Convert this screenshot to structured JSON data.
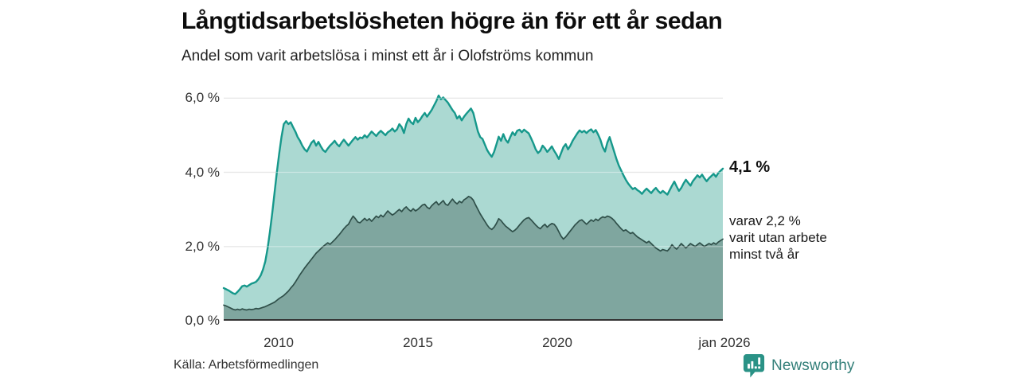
{
  "header": {
    "title": "Långtidsarbetslösheten högre än för ett år sedan",
    "subtitle": "Andel som varit arbetslösa i minst ett år i Olofströms kommun"
  },
  "chart_data": {
    "type": "area",
    "title": "Långtidsarbetslösheten högre än för ett år sedan",
    "subtitle": "Andel som varit arbetslösa i minst ett år i Olofströms kommun",
    "unit": "%",
    "x_start": "2008-01",
    "x_end": "2026-01",
    "x_interval": "monthly",
    "ylim": [
      0,
      6.5
    ],
    "grid": true,
    "gridline_values": [
      2,
      4,
      6
    ],
    "ytick_labels": [
      "6,0 %",
      "4,0 %",
      "2,0 %",
      "0,0 %"
    ],
    "xtick_labels": [
      "2010",
      "2015",
      "2020",
      "jan 2026"
    ],
    "colors": {
      "gridline": "#d8d8d8",
      "gridline_over_fill": "rgba(255,255,255,0.4)",
      "baseline": "#333333"
    },
    "series": [
      {
        "name": "Arbetslösa minst ett år",
        "end_value": "4,1 %",
        "color": "#16988b",
        "fill": "#abd9d2",
        "line_width": 2.4,
        "values": [
          0.88,
          0.85,
          0.82,
          0.78,
          0.74,
          0.72,
          0.78,
          0.85,
          0.93,
          0.95,
          0.92,
          0.96,
          1.0,
          1.02,
          1.05,
          1.12,
          1.22,
          1.38,
          1.6,
          1.95,
          2.4,
          2.9,
          3.45,
          4.0,
          4.5,
          4.95,
          5.3,
          5.38,
          5.3,
          5.35,
          5.22,
          5.1,
          4.95,
          4.85,
          4.72,
          4.62,
          4.56,
          4.68,
          4.8,
          4.86,
          4.72,
          4.82,
          4.7,
          4.6,
          4.55,
          4.64,
          4.72,
          4.78,
          4.85,
          4.76,
          4.7,
          4.8,
          4.88,
          4.8,
          4.72,
          4.8,
          4.88,
          4.95,
          4.88,
          4.94,
          4.92,
          5.0,
          4.94,
          5.02,
          5.1,
          5.04,
          4.98,
          5.06,
          5.12,
          5.06,
          5.0,
          5.08,
          5.12,
          5.18,
          5.1,
          5.16,
          5.3,
          5.22,
          5.06,
          5.3,
          5.45,
          5.35,
          5.3,
          5.47,
          5.35,
          5.42,
          5.52,
          5.6,
          5.5,
          5.59,
          5.68,
          5.8,
          5.92,
          6.07,
          5.97,
          6.02,
          5.95,
          5.88,
          5.78,
          5.68,
          5.6,
          5.45,
          5.52,
          5.4,
          5.5,
          5.58,
          5.65,
          5.72,
          5.6,
          5.35,
          5.1,
          4.95,
          4.9,
          4.75,
          4.6,
          4.5,
          4.42,
          4.55,
          4.75,
          4.96,
          4.85,
          5.03,
          4.88,
          4.8,
          4.95,
          5.08,
          5.0,
          5.12,
          5.15,
          5.08,
          5.15,
          5.1,
          5.05,
          4.92,
          4.78,
          4.62,
          4.52,
          4.58,
          4.72,
          4.65,
          4.55,
          4.62,
          4.7,
          4.58,
          4.48,
          4.36,
          4.52,
          4.68,
          4.76,
          4.62,
          4.72,
          4.85,
          4.95,
          5.05,
          5.13,
          5.08,
          5.12,
          5.06,
          5.12,
          5.16,
          5.08,
          5.14,
          5.02,
          4.88,
          4.68,
          4.56,
          4.8,
          4.95,
          4.75,
          4.55,
          4.35,
          4.18,
          4.05,
          3.92,
          3.8,
          3.7,
          3.62,
          3.55,
          3.58,
          3.52,
          3.48,
          3.42,
          3.5,
          3.56,
          3.5,
          3.44,
          3.52,
          3.58,
          3.5,
          3.44,
          3.5,
          3.45,
          3.4,
          3.52,
          3.64,
          3.75,
          3.62,
          3.5,
          3.58,
          3.7,
          3.8,
          3.72,
          3.64,
          3.76,
          3.84,
          3.92,
          3.86,
          3.94,
          3.84,
          3.76,
          3.84,
          3.9,
          3.96,
          3.88,
          3.98,
          4.04,
          4.1
        ]
      },
      {
        "name": "Varit utan arbete minst två år",
        "end_value": "2,2 %",
        "color": "#2f4f49",
        "fill": "#7fa69f",
        "line_width": 1.7,
        "values": [
          0.42,
          0.4,
          0.37,
          0.34,
          0.31,
          0.29,
          0.31,
          0.29,
          0.32,
          0.3,
          0.29,
          0.31,
          0.3,
          0.31,
          0.33,
          0.32,
          0.34,
          0.36,
          0.38,
          0.41,
          0.44,
          0.47,
          0.5,
          0.55,
          0.6,
          0.64,
          0.68,
          0.74,
          0.8,
          0.88,
          0.95,
          1.04,
          1.14,
          1.24,
          1.33,
          1.42,
          1.5,
          1.58,
          1.66,
          1.74,
          1.82,
          1.88,
          1.94,
          2.0,
          2.05,
          2.1,
          2.06,
          2.12,
          2.18,
          2.25,
          2.32,
          2.4,
          2.48,
          2.55,
          2.6,
          2.72,
          2.82,
          2.75,
          2.66,
          2.64,
          2.7,
          2.76,
          2.7,
          2.75,
          2.68,
          2.75,
          2.82,
          2.78,
          2.85,
          2.8,
          2.88,
          2.96,
          2.9,
          2.85,
          2.89,
          2.95,
          3.0,
          2.94,
          3.02,
          3.07,
          3.0,
          2.95,
          3.02,
          2.96,
          3.0,
          3.06,
          3.12,
          3.14,
          3.06,
          3.02,
          3.1,
          3.16,
          3.21,
          3.12,
          3.18,
          3.24,
          3.14,
          3.11,
          3.2,
          3.28,
          3.2,
          3.15,
          3.22,
          3.18,
          3.26,
          3.3,
          3.35,
          3.32,
          3.25,
          3.12,
          3.0,
          2.88,
          2.78,
          2.68,
          2.58,
          2.5,
          2.46,
          2.52,
          2.62,
          2.75,
          2.7,
          2.62,
          2.55,
          2.5,
          2.45,
          2.4,
          2.44,
          2.5,
          2.58,
          2.65,
          2.72,
          2.76,
          2.78,
          2.72,
          2.65,
          2.58,
          2.52,
          2.48,
          2.55,
          2.6,
          2.52,
          2.58,
          2.62,
          2.6,
          2.52,
          2.4,
          2.28,
          2.2,
          2.26,
          2.34,
          2.42,
          2.5,
          2.58,
          2.64,
          2.7,
          2.72,
          2.66,
          2.6,
          2.66,
          2.72,
          2.68,
          2.74,
          2.7,
          2.76,
          2.8,
          2.78,
          2.82,
          2.8,
          2.76,
          2.7,
          2.62,
          2.55,
          2.48,
          2.42,
          2.45,
          2.4,
          2.35,
          2.38,
          2.32,
          2.26,
          2.22,
          2.18,
          2.14,
          2.1,
          2.14,
          2.08,
          2.02,
          1.96,
          1.92,
          1.88,
          1.92,
          1.9,
          1.88,
          1.95,
          2.05,
          1.98,
          1.93,
          2.0,
          2.08,
          2.02,
          1.96,
          2.02,
          2.08,
          2.04,
          2.0,
          2.05,
          2.1,
          2.05,
          2.0,
          2.04,
          2.08,
          2.05,
          2.1,
          2.06,
          2.12,
          2.16,
          2.2
        ]
      }
    ]
  },
  "annotation": {
    "value_label": "4,1 %",
    "note_lines": [
      "varav 2,2 %",
      "varit utan arbete",
      "minst två år"
    ]
  },
  "footer": {
    "source": "Källa: Arbetsförmedlingen",
    "brand": "Newsworthy"
  }
}
